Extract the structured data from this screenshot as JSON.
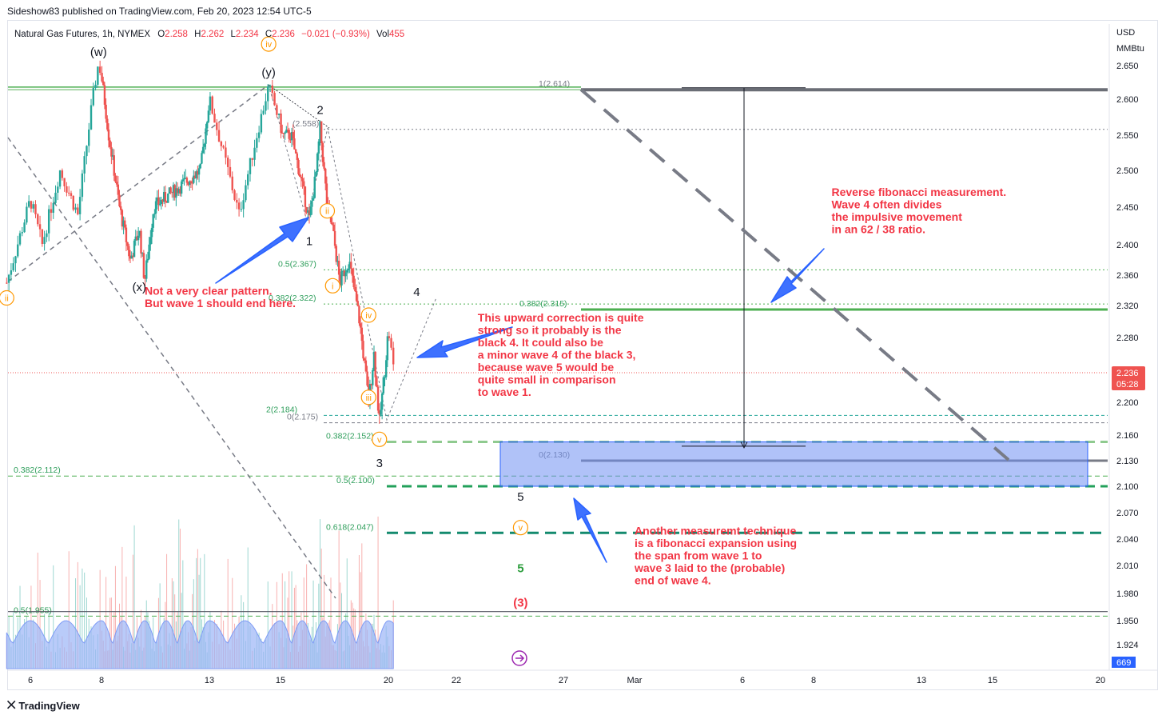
{
  "header": {
    "publisher_line": "Sideshow83 published on TradingView.com, Feb 20, 2023 12:54 UTC-5",
    "symbol": "Natural Gas Futures, 1h, NYMEX",
    "o_label": "O",
    "o_value": "2.258",
    "h_label": "H",
    "h_value": "2.262",
    "l_label": "L",
    "l_value": "2.234",
    "c_label": "C",
    "c_value": "2.236",
    "change": "−0.021 (−0.93%)",
    "vol_label": "Vol",
    "vol_value": "455"
  },
  "footer": {
    "brand": "TradingView",
    "logo_icon": "tradingview-logo-icon"
  },
  "colors": {
    "bg": "#ffffff",
    "up": "#26a69a",
    "down": "#ef5350",
    "fib_green": "#4caf50",
    "fib_dark": "#787b86",
    "annotation_red": "#f23645",
    "arrow_blue": "#2962ff",
    "target_box": "#9bb5f7",
    "volume_ma": "#9bb5f7",
    "wave_orange": "#ff9800"
  },
  "chart_data": {
    "type": "candlestick",
    "symbol": "Natural Gas Futures",
    "interval": "1h",
    "exchange": "NYMEX",
    "currency": "USD",
    "unit": "MMBtu",
    "ylim": [
      1.92,
      2.665
    ],
    "y_ticks": [
      "2.650",
      "2.600",
      "2.550",
      "2.500",
      "2.450",
      "2.400",
      "2.360",
      "2.320",
      "2.280",
      "2.200",
      "2.160",
      "2.130",
      "2.100",
      "2.070",
      "2.040",
      "2.010",
      "1.980",
      "1.950",
      "1.924"
    ],
    "x_ticks": [
      {
        "label": "6",
        "date": "2023-02-06"
      },
      {
        "label": "8",
        "date": "2023-02-08"
      },
      {
        "label": "13",
        "date": "2023-02-13"
      },
      {
        "label": "15",
        "date": "2023-02-15"
      },
      {
        "label": "20",
        "date": "2023-02-20"
      },
      {
        "label": "22",
        "date": "2023-02-22"
      },
      {
        "label": "27",
        "date": "2023-02-27"
      },
      {
        "label": "Mar",
        "date": "2023-03-01"
      },
      {
        "label": "6",
        "date": "2023-03-06"
      },
      {
        "label": "8",
        "date": "2023-03-08"
      },
      {
        "label": "13",
        "date": "2023-03-13"
      },
      {
        "label": "15",
        "date": "2023-03-15"
      },
      {
        "label": "20",
        "date": "2023-03-20"
      }
    ],
    "last_price": "2.236",
    "countdown": "05:28",
    "volume_last": "669",
    "price_path": [
      [
        "2023-02-05T20:00",
        2.35
      ],
      [
        "2023-02-06T12:00",
        2.46
      ],
      [
        "2023-02-06T20:00",
        2.4
      ],
      [
        "2023-02-07T08:00",
        2.5
      ],
      [
        "2023-02-07T20:00",
        2.44
      ],
      [
        "2023-02-08T06:00",
        2.6
      ],
      [
        "2023-02-08T10:00",
        2.655
      ],
      [
        "2023-02-08T20:00",
        2.55
      ],
      [
        "2023-02-09T08:00",
        2.45
      ],
      [
        "2023-02-09T20:00",
        2.38
      ],
      [
        "2023-02-10T06:00",
        2.42
      ],
      [
        "2023-02-10T12:00",
        2.352
      ],
      [
        "2023-02-10T22:00",
        2.45
      ],
      [
        "2023-02-13T02:00",
        2.5
      ],
      [
        "2023-02-13T12:00",
        2.6
      ],
      [
        "2023-02-13T22:00",
        2.52
      ],
      [
        "2023-02-14T08:00",
        2.44
      ],
      [
        "2023-02-14T20:00",
        2.55
      ],
      [
        "2023-02-15T04:00",
        2.619
      ],
      [
        "2023-02-15T14:00",
        2.55
      ],
      [
        "2023-02-16T00:00",
        2.55
      ],
      [
        "2023-02-16T12:00",
        2.48
      ],
      [
        "2023-02-16T20:00",
        2.433
      ],
      [
        "2023-02-17T04:00",
        2.5
      ],
      [
        "2023-02-17T08:00",
        2.56
      ],
      [
        "2023-02-17T16:00",
        2.45
      ],
      [
        "2023-02-17T22:00",
        2.42
      ],
      [
        "2023-02-18T06:00",
        2.35
      ],
      [
        "2023-02-18T16:00",
        2.38
      ],
      [
        "2023-02-19T04:00",
        2.3
      ],
      [
        "2023-02-19T14:00",
        2.2
      ],
      [
        "2023-02-19T20:00",
        2.26
      ],
      [
        "2023-02-20T02:00",
        2.175
      ],
      [
        "2023-02-20T08:00",
        2.24
      ],
      [
        "2023-02-20T12:00",
        2.29
      ],
      [
        "2023-02-20T16:00",
        2.236
      ]
    ],
    "fib_levels": [
      {
        "label": "1(2.614)",
        "value": 2.614
      },
      {
        "label": "(2.558)",
        "value": 2.558
      },
      {
        "label": "0.5(2.367)",
        "value": 2.367
      },
      {
        "label": "0.382(2.322)",
        "value": 2.322
      },
      {
        "label": "0.382(2.315)",
        "value": 2.315
      },
      {
        "label": "2(2.184)",
        "value": 2.184
      },
      {
        "label": "0(2.175)",
        "value": 2.175
      },
      {
        "label": "0.382(2.152)",
        "value": 2.152
      },
      {
        "label": "0(2.130)",
        "value": 2.13
      },
      {
        "label": "0.382(2.112)",
        "value": 2.112
      },
      {
        "label": "0.5(2.100)",
        "value": 2.1
      },
      {
        "label": "0.618(2.047)",
        "value": 2.047
      },
      {
        "label": "0.5(1.955)",
        "value": 1.955
      }
    ],
    "wave_labels": [
      {
        "text": "(w)",
        "date": "2023-02-08T10:00",
        "price": 2.67,
        "style": "black"
      },
      {
        "text": "(x)",
        "date": "2023-02-10T06:00",
        "price": 2.344,
        "style": "black"
      },
      {
        "text": "(y)",
        "date": "2023-02-15T04:00",
        "price": 2.64,
        "style": "black"
      },
      {
        "text": "iv",
        "date": "2023-02-15T04:00",
        "price": 2.682,
        "style": "circle"
      },
      {
        "text": "ii",
        "date": "2023-02-05T20:00",
        "price": 2.33,
        "style": "circle"
      },
      {
        "text": "2",
        "date": "2023-02-17T08:00",
        "price": 2.585,
        "style": "black"
      },
      {
        "text": "1",
        "date": "2023-02-16T20:00",
        "price": 2.405,
        "style": "black"
      },
      {
        "text": "ii",
        "date": "2023-02-17T16:00",
        "price": 2.445,
        "style": "circle"
      },
      {
        "text": "i",
        "date": "2023-02-17T22:00",
        "price": 2.346,
        "style": "circle"
      },
      {
        "text": "iv",
        "date": "2023-02-19T14:00",
        "price": 2.308,
        "style": "circle"
      },
      {
        "text": "iii",
        "date": "2023-02-19T14:00",
        "price": 2.206,
        "style": "circle"
      },
      {
        "text": "v",
        "date": "2023-02-20T02:00",
        "price": 2.155,
        "style": "circle"
      },
      {
        "text": "3",
        "date": "2023-02-20T02:00",
        "price": 2.127,
        "style": "black"
      },
      {
        "text": "4",
        "date": "2023-02-21T08:00",
        "price": 2.338,
        "style": "black"
      },
      {
        "text": "5",
        "date": "2023-02-25T12:00",
        "price": 2.088,
        "style": "black"
      },
      {
        "text": "v",
        "date": "2023-02-25T12:00",
        "price": 2.053,
        "style": "circle"
      },
      {
        "text": "5",
        "date": "2023-02-25T12:00",
        "price": 2.007,
        "style": "green"
      },
      {
        "text": "(3)",
        "date": "2023-02-25T12:00",
        "price": 1.97,
        "style": "red"
      }
    ],
    "annotations": [
      {
        "id": "unclear",
        "lines": [
          "Not a very clear pattern.",
          "But wave 1 should end here."
        ],
        "date": "2023-02-10T12:00",
        "price": 2.334
      },
      {
        "id": "correction",
        "lines": [
          "This upward correction is quite",
          "strong so it probably is the",
          "black 4. It could also be",
          "a minor wave 4 of the black 3,",
          "because wave 5 would be",
          "quite small in comparison",
          "to wave 1."
        ],
        "date": "2023-02-23T12:00",
        "price": 2.3
      },
      {
        "id": "reverse_fib",
        "lines": [
          "Reverse fibonacci measurement.",
          "Wave 4 often divides",
          "the impulsive movement",
          "in an 62 / 38 ratio."
        ],
        "date": "2023-03-09T08:00",
        "price": 2.465
      },
      {
        "id": "expansion",
        "lines": [
          "Another measuremt technique",
          "is a fibonacci expansion using",
          "the span from wave 1 to",
          "wave 3 laid to the (probable)",
          "end of wave 4."
        ],
        "date": "2023-02-29T12:00",
        "price": 2.045
      }
    ]
  }
}
